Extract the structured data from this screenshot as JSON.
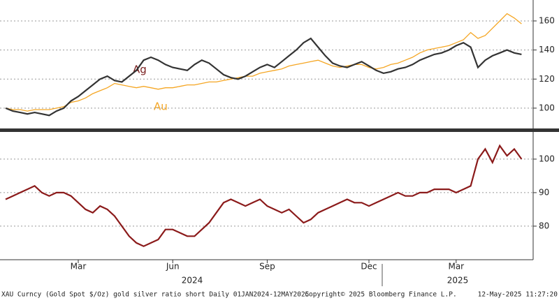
{
  "chart_data": [
    {
      "type": "line",
      "ylim": [
        86.5,
        174.4
      ],
      "yticks": [
        100,
        120,
        140,
        160
      ],
      "grid": true,
      "annotations": [
        "Ag",
        "Au"
      ],
      "series": [
        {
          "name": "Au",
          "color": "#f5a623",
          "values": [
            100,
            99,
            99,
            98,
            99,
            99,
            99,
            100,
            101,
            104,
            105,
            107,
            110,
            112,
            114,
            117,
            116,
            115,
            114,
            115,
            114,
            113,
            114,
            114,
            115,
            116,
            116,
            117,
            118,
            118,
            119,
            120,
            121,
            122,
            122,
            124,
            125,
            126,
            127,
            129,
            130,
            131,
            132,
            133,
            131,
            129,
            128,
            129,
            130,
            130,
            128,
            127,
            128,
            130,
            131,
            133,
            135,
            138,
            140,
            141,
            142,
            143,
            145,
            147,
            152,
            148,
            150,
            155,
            160,
            165,
            162,
            158
          ]
        },
        {
          "name": "Ag",
          "color": "#333333",
          "values": [
            100,
            98,
            97,
            96,
            97,
            96,
            95,
            98,
            100,
            105,
            108,
            112,
            116,
            120,
            122,
            119,
            118,
            122,
            126,
            133,
            135,
            133,
            130,
            128,
            127,
            126,
            130,
            133,
            131,
            127,
            123,
            121,
            120,
            122,
            125,
            128,
            130,
            128,
            132,
            136,
            140,
            145,
            148,
            142,
            136,
            131,
            129,
            128,
            130,
            132,
            129,
            126,
            124,
            125,
            127,
            128,
            130,
            133,
            135,
            137,
            138,
            140,
            143,
            145,
            142,
            128,
            133,
            136,
            138,
            140,
            138,
            137
          ]
        }
      ]
    },
    {
      "type": "line",
      "ylim": [
        70.4,
        107.9
      ],
      "yticks": [
        80,
        90,
        100
      ],
      "grid": true,
      "categories": [
        null,
        null,
        null,
        null,
        null,
        null,
        null,
        null,
        null,
        null,
        "Mar",
        null,
        null,
        null,
        null,
        null,
        null,
        null,
        null,
        null,
        null,
        null,
        null,
        "Jun",
        null,
        null,
        null,
        null,
        null,
        null,
        null,
        null,
        null,
        null,
        null,
        null,
        "Sep",
        null,
        null,
        null,
        null,
        null,
        null,
        null,
        null,
        null,
        null,
        null,
        null,
        null,
        "Dec",
        null,
        null,
        null,
        null,
        null,
        null,
        null,
        null,
        null,
        null,
        null,
        "Mar",
        null,
        null,
        null,
        null,
        null,
        null,
        null,
        null,
        null
      ],
      "year_labels": [
        "2024",
        "2025"
      ],
      "series": [
        {
          "name": "gold silver ratio",
          "color": "#8b1a1a",
          "values": [
            88,
            89,
            90,
            91,
            92,
            90,
            89,
            90,
            90,
            89,
            87,
            85,
            84,
            86,
            85,
            83,
            80,
            77,
            75,
            74,
            75,
            76,
            79,
            79,
            78,
            77,
            77,
            79,
            81,
            84,
            87,
            88,
            87,
            86,
            87,
            88,
            86,
            85,
            84,
            85,
            83,
            81,
            82,
            84,
            85,
            86,
            87,
            88,
            87,
            87,
            86,
            87,
            88,
            89,
            90,
            89,
            89,
            90,
            90,
            91,
            91,
            91,
            90,
            91,
            92,
            100,
            103,
            99,
            104,
            101,
            103,
            100
          ]
        }
      ]
    }
  ],
  "footer": {
    "left": "XAU Curncy (Gold Spot  $/Oz) gold silver ratio short  Daily 01JAN2024-12MAY2025",
    "center": "Copyright© 2025 Bloomberg Finance L.P.",
    "right": "12-May-2025 11:27:20"
  }
}
